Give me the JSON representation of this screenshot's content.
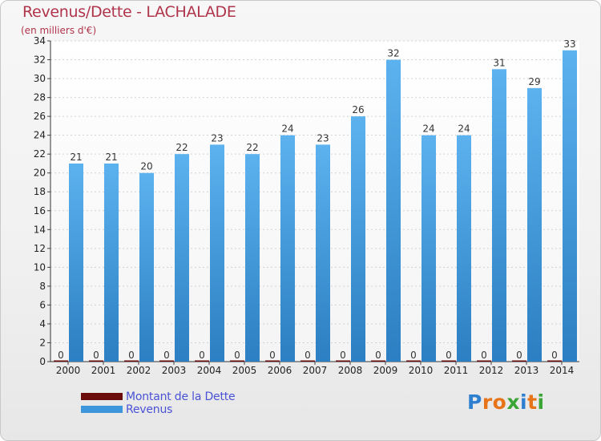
{
  "header": {
    "title": "Revenus/Dette - LACHALADE",
    "subtitle": "(en milliers d'€)"
  },
  "chart_data": {
    "type": "bar",
    "title": "Revenus/Dette - LACHALADE",
    "ylabel": "(en milliers d'€)",
    "xlabel": "",
    "categories": [
      "2000",
      "2001",
      "2002",
      "2003",
      "2004",
      "2005",
      "2006",
      "2007",
      "2008",
      "2009",
      "2010",
      "2011",
      "2012",
      "2013",
      "2014"
    ],
    "series": [
      {
        "name": "Montant de la Dette",
        "color": "#6b0b0b",
        "values": [
          0,
          0,
          0,
          0,
          0,
          0,
          0,
          0,
          0,
          0,
          0,
          0,
          0,
          0,
          0
        ]
      },
      {
        "name": "Revenus",
        "color": "#3d96db",
        "values": [
          21,
          21,
          20,
          22,
          23,
          22,
          24,
          23,
          26,
          32,
          24,
          24,
          31,
          29,
          33
        ]
      }
    ],
    "ylim": [
      0,
      34
    ],
    "yticks": [
      0,
      2,
      4,
      6,
      8,
      10,
      12,
      14,
      16,
      18,
      20,
      22,
      24,
      26,
      28,
      30,
      32,
      34
    ],
    "grid": true,
    "legend": "bottom-left"
  },
  "legend": {
    "items": [
      {
        "label": "Montant de la Dette",
        "color": "#6b0b0b"
      },
      {
        "label": "Revenus",
        "color": "#3d96db"
      }
    ]
  },
  "logo": {
    "letters": [
      "P",
      "r",
      "o",
      "x",
      "i",
      "t",
      "i"
    ],
    "colors": [
      "#2f7fd0",
      "#e8741a",
      "#e8741a",
      "#3aa535",
      "#2f7fd0",
      "#e8741a",
      "#3aa535"
    ]
  }
}
